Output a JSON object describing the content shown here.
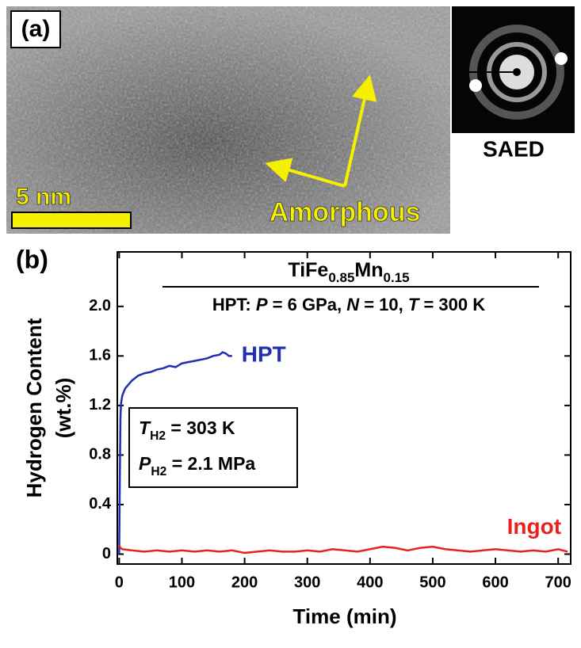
{
  "panel_a": {
    "label": "(a)",
    "scale_bar": "5 nm",
    "annotation": "Amorphous",
    "inset_label": "SAED"
  },
  "panel_b": {
    "label": "(b)"
  },
  "chart_data": {
    "type": "line",
    "title": [
      {
        "text": "TiFe"
      },
      {
        "text": "0.85",
        "style": "sub"
      },
      {
        "text": "Mn"
      },
      {
        "text": "0.15",
        "style": "sub"
      }
    ],
    "subtitle": [
      {
        "text": "HPT: "
      },
      {
        "text": "P",
        "style": "italic"
      },
      {
        "text": " = 6 GPa, "
      },
      {
        "text": "N",
        "style": "italic"
      },
      {
        "text": " = 10, "
      },
      {
        "text": "T",
        "style": "italic"
      },
      {
        "text": " = 300 K"
      }
    ],
    "annotations": [
      [
        {
          "text": "T",
          "style": "italic"
        },
        {
          "text": "H2",
          "style": "sub"
        },
        {
          "text": " = 303 K"
        }
      ],
      [
        {
          "text": "P",
          "style": "italic"
        },
        {
          "text": "H2",
          "style": "sub"
        },
        {
          "text": " = 2.1 MPa"
        }
      ]
    ],
    "xlabel": "Time (min)",
    "ylabel": [
      "Hydrogen Content",
      "(wt.%)"
    ],
    "xlim": [
      -3,
      720
    ],
    "ylim": [
      -0.08,
      2.44
    ],
    "xticks": [
      0,
      100,
      200,
      300,
      400,
      500,
      600,
      700
    ],
    "yticks": [
      0,
      0.4,
      0.8,
      1.2,
      1.6,
      {
        "value": 2,
        "label": "2.0"
      }
    ],
    "series": [
      {
        "name": "HPT",
        "color": "#1f2fb0",
        "x": [
          0,
          1,
          2,
          3,
          5,
          8,
          10,
          15,
          20,
          25,
          30,
          40,
          50,
          60,
          70,
          80,
          90,
          100,
          110,
          120,
          130,
          140,
          150,
          160,
          165,
          170,
          175,
          180
        ],
        "values": [
          0,
          0.6,
          1.1,
          1.22,
          1.28,
          1.32,
          1.34,
          1.37,
          1.4,
          1.42,
          1.44,
          1.46,
          1.47,
          1.49,
          1.5,
          1.52,
          1.51,
          1.54,
          1.55,
          1.56,
          1.57,
          1.58,
          1.6,
          1.61,
          1.63,
          1.62,
          1.6,
          1.6
        ]
      },
      {
        "name": "Ingot",
        "color": "#e8231f",
        "x": [
          0,
          2,
          5,
          20,
          40,
          60,
          80,
          100,
          120,
          140,
          160,
          180,
          200,
          220,
          240,
          260,
          280,
          300,
          320,
          340,
          360,
          380,
          400,
          420,
          440,
          460,
          480,
          500,
          520,
          540,
          560,
          580,
          600,
          620,
          640,
          660,
          680,
          700,
          715
        ],
        "values": [
          0.07,
          0.05,
          0.04,
          0.03,
          0.02,
          0.03,
          0.02,
          0.03,
          0.02,
          0.03,
          0.02,
          0.03,
          0.01,
          0.02,
          0.03,
          0.02,
          0.02,
          0.03,
          0.02,
          0.04,
          0.03,
          0.02,
          0.04,
          0.06,
          0.05,
          0.03,
          0.05,
          0.06,
          0.04,
          0.03,
          0.02,
          0.03,
          0.04,
          0.03,
          0.02,
          0.03,
          0.02,
          0.04,
          0.02
        ]
      }
    ]
  }
}
